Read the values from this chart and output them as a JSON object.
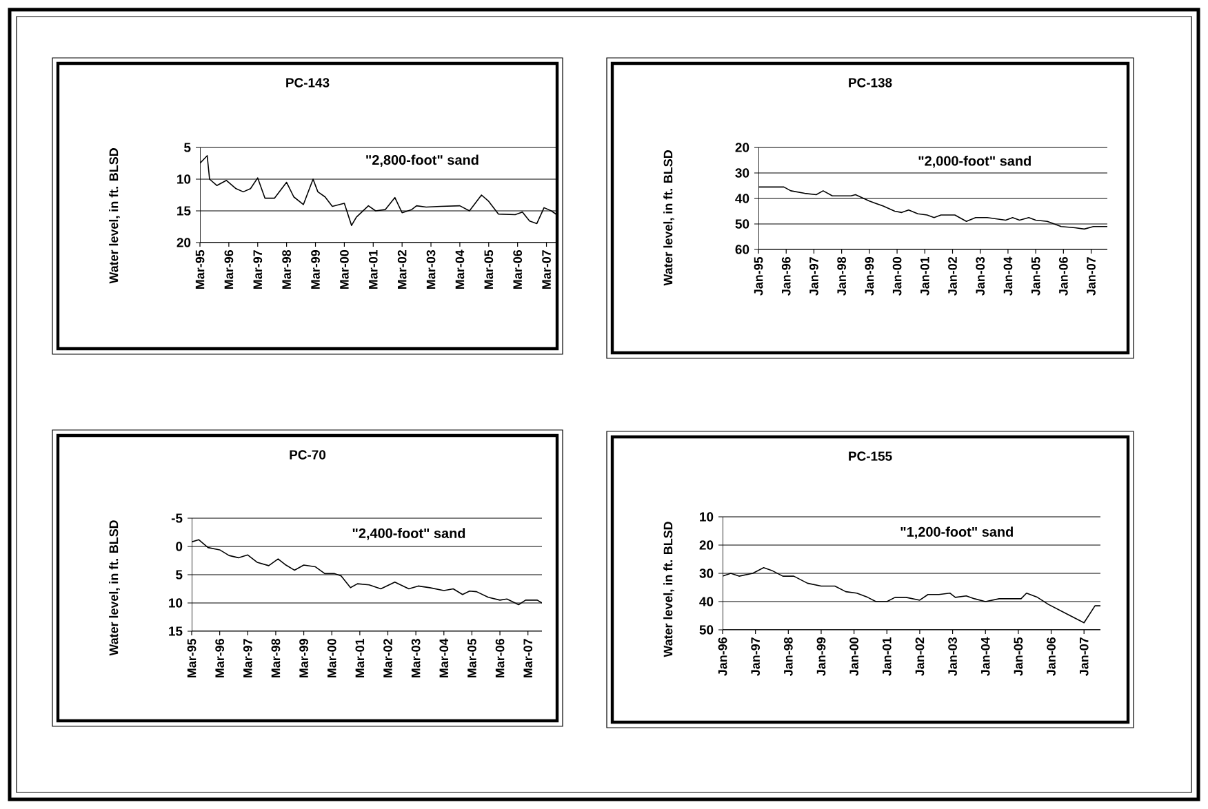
{
  "chart_data": [
    {
      "type": "line",
      "title": "PC-143",
      "ylabel": "Water level, in ft. BLSD",
      "annotations": [
        "\"2,800-foot\" sand"
      ],
      "color": "#000000",
      "grid": "y",
      "xlim": [
        "1995-03",
        "2007-08"
      ],
      "ylim": [
        20,
        5
      ],
      "yticks": [
        5,
        10,
        15,
        20
      ],
      "xticks": [
        {
          "value": "1995-03",
          "label": "Mar-95"
        },
        {
          "value": "1996-03",
          "label": "Mar-96"
        },
        {
          "value": "1997-03",
          "label": "Mar-97"
        },
        {
          "value": "1998-03",
          "label": "Mar-98"
        },
        {
          "value": "1999-03",
          "label": "Mar-99"
        },
        {
          "value": "2000-03",
          "label": "Mar-00"
        },
        {
          "value": "2001-03",
          "label": "Mar-01"
        },
        {
          "value": "2002-03",
          "label": "Mar-02"
        },
        {
          "value": "2003-03",
          "label": "Mar-03"
        },
        {
          "value": "2004-03",
          "label": "Mar-04"
        },
        {
          "value": "2005-03",
          "label": "Mar-05"
        },
        {
          "value": "2006-03",
          "label": "Mar-06"
        },
        {
          "value": "2007-03",
          "label": "Mar-07"
        }
      ],
      "x": [
        "1995-03",
        "1995-06",
        "1995-07",
        "1995-10",
        "1996-02",
        "1996-06",
        "1996-09",
        "1996-12",
        "1997-03",
        "1997-06",
        "1997-10",
        "1998-03",
        "1998-06",
        "1998-10",
        "1999-02",
        "1999-04",
        "1999-07",
        "1999-10",
        "2000-03",
        "2000-06",
        "2000-08",
        "2001-01",
        "2001-04",
        "2001-08",
        "2001-12",
        "2002-03",
        "2002-07",
        "2002-09",
        "2003-01",
        "2003-07",
        "2004-03",
        "2004-07",
        "2004-12",
        "2005-03",
        "2005-07",
        "2006-02",
        "2006-05",
        "2006-08",
        "2006-11",
        "2007-02",
        "2007-05",
        "2007-08"
      ],
      "values": [
        7.5,
        6.3,
        10,
        11,
        10.2,
        11.5,
        12,
        11.5,
        9.8,
        13,
        13,
        10.5,
        12.8,
        14,
        10,
        12,
        12.8,
        14.3,
        13.8,
        17.3,
        16,
        14.2,
        15,
        14.8,
        12.9,
        15.3,
        14.8,
        14.2,
        14.4,
        14.3,
        14.2,
        15,
        12.5,
        13.5,
        15.5,
        15.6,
        15.2,
        16.6,
        17,
        14.5,
        15,
        15.8
      ]
    },
    {
      "type": "line",
      "title": "PC-138",
      "ylabel": "Water level, in ft. BLSD",
      "annotations": [
        "\"2,000-foot\" sand"
      ],
      "color": "#000000",
      "grid": "y",
      "xlim": [
        "1995-01",
        "2007-08"
      ],
      "ylim": [
        60,
        20
      ],
      "yticks": [
        20,
        30,
        40,
        50,
        60
      ],
      "xticks": [
        {
          "value": "1995-01",
          "label": "Jan-95"
        },
        {
          "value": "1996-01",
          "label": "Jan-96"
        },
        {
          "value": "1997-01",
          "label": "Jan-97"
        },
        {
          "value": "1998-01",
          "label": "Jan-98"
        },
        {
          "value": "1999-01",
          "label": "Jan-99"
        },
        {
          "value": "2000-01",
          "label": "Jan-00"
        },
        {
          "value": "2001-01",
          "label": "Jan-01"
        },
        {
          "value": "2002-01",
          "label": "Jan-02"
        },
        {
          "value": "2003-01",
          "label": "Jan-03"
        },
        {
          "value": "2004-01",
          "label": "Jan-04"
        },
        {
          "value": "2005-01",
          "label": "Jan-05"
        },
        {
          "value": "2006-01",
          "label": "Jan-06"
        },
        {
          "value": "2007-01",
          "label": "Jan-07"
        }
      ],
      "x": [
        "1995-01",
        "1995-12",
        "1996-03",
        "1996-09",
        "1997-02",
        "1997-05",
        "1997-09",
        "1998-05",
        "1998-07",
        "1999-01",
        "1999-07",
        "1999-12",
        "2000-03",
        "2000-06",
        "2000-10",
        "2001-02",
        "2001-05",
        "2001-08",
        "2002-02",
        "2002-07",
        "2002-11",
        "2003-04",
        "2003-12",
        "2004-03",
        "2004-06",
        "2004-10",
        "2005-01",
        "2005-06",
        "2005-12",
        "2006-06",
        "2006-10",
        "2007-02",
        "2007-08"
      ],
      "values": [
        35.5,
        35.5,
        37,
        38,
        38.5,
        37,
        39,
        39,
        38.5,
        41,
        43,
        45,
        45.5,
        44.5,
        46,
        46.5,
        47.5,
        46.5,
        46.5,
        49,
        47.5,
        47.5,
        48.5,
        47.5,
        48.5,
        47.5,
        48.5,
        49,
        51,
        51.5,
        52,
        51,
        51
      ]
    },
    {
      "type": "line",
      "title": "PC-70",
      "ylabel": "Water level, in ft. BLSD",
      "annotations": [
        "\"2,400-foot\" sand"
      ],
      "color": "#000000",
      "grid": "y",
      "xlim": [
        "1995-03",
        "2007-09"
      ],
      "ylim": [
        15,
        -5
      ],
      "yticks": [
        -5,
        0,
        5,
        10,
        15
      ],
      "xticks": [
        {
          "value": "1995-03",
          "label": "Mar-95"
        },
        {
          "value": "1996-03",
          "label": "Mar-96"
        },
        {
          "value": "1997-03",
          "label": "Mar-97"
        },
        {
          "value": "1998-03",
          "label": "Mar-98"
        },
        {
          "value": "1999-03",
          "label": "Mar-99"
        },
        {
          "value": "2000-03",
          "label": "Mar-00"
        },
        {
          "value": "2001-03",
          "label": "Mar-01"
        },
        {
          "value": "2002-03",
          "label": "Mar-02"
        },
        {
          "value": "2003-03",
          "label": "Mar-03"
        },
        {
          "value": "2004-03",
          "label": "Mar-04"
        },
        {
          "value": "2005-03",
          "label": "Mar-05"
        },
        {
          "value": "2006-03",
          "label": "Mar-06"
        },
        {
          "value": "2007-03",
          "label": "Mar-07"
        }
      ],
      "x": [
        "1995-03",
        "1995-06",
        "1995-10",
        "1996-03",
        "1996-07",
        "1996-11",
        "1997-03",
        "1997-07",
        "1997-12",
        "1998-04",
        "1998-07",
        "1998-11",
        "1999-03",
        "1999-08",
        "1999-12",
        "2000-04",
        "2000-07",
        "2000-11",
        "2001-02",
        "2001-07",
        "2001-12",
        "2002-06",
        "2002-12",
        "2003-04",
        "2003-09",
        "2004-03",
        "2004-07",
        "2004-11",
        "2005-02",
        "2005-05",
        "2005-10",
        "2006-03",
        "2006-06",
        "2006-11",
        "2007-02",
        "2007-07",
        "2007-09"
      ],
      "values": [
        -0.8,
        -1.2,
        0.2,
        0.6,
        1.6,
        2,
        1.5,
        2.8,
        3.4,
        2.2,
        3.2,
        4.2,
        3.3,
        3.6,
        4.8,
        4.8,
        5.2,
        7.3,
        6.6,
        6.8,
        7.5,
        6.3,
        7.5,
        7,
        7.3,
        7.8,
        7.5,
        8.5,
        7.9,
        8,
        9,
        9.5,
        9.3,
        10.3,
        9.5,
        9.5,
        10
      ]
    },
    {
      "type": "line",
      "title": "PC-155",
      "ylabel": "Water level, in ft. BLSD",
      "annotations": [
        "\"1,200-foot\" sand"
      ],
      "color": "#000000",
      "grid": "y",
      "xlim": [
        "1996-01",
        "2007-07"
      ],
      "ylim": [
        50,
        10
      ],
      "yticks": [
        10,
        20,
        30,
        40,
        50
      ],
      "xticks": [
        {
          "value": "1996-01",
          "label": "Jan-96"
        },
        {
          "value": "1997-01",
          "label": "Jan-97"
        },
        {
          "value": "1998-01",
          "label": "Jan-98"
        },
        {
          "value": "1999-01",
          "label": "Jan-99"
        },
        {
          "value": "2000-01",
          "label": "Jan-00"
        },
        {
          "value": "2001-01",
          "label": "Jan-01"
        },
        {
          "value": "2002-01",
          "label": "Jan-02"
        },
        {
          "value": "2003-01",
          "label": "Jan-03"
        },
        {
          "value": "2004-01",
          "label": "Jan-04"
        },
        {
          "value": "2005-01",
          "label": "Jan-05"
        },
        {
          "value": "2006-01",
          "label": "Jan-06"
        },
        {
          "value": "2007-01",
          "label": "Jan-07"
        }
      ],
      "x": [
        "1996-01",
        "1996-04",
        "1996-07",
        "1996-12",
        "1997-04",
        "1997-07",
        "1997-11",
        "1998-03",
        "1998-08",
        "1999-01",
        "1999-06",
        "1999-10",
        "2000-02",
        "2000-06",
        "2000-09",
        "2001-01",
        "2001-04",
        "2001-08",
        "2002-01",
        "2002-04",
        "2002-08",
        "2002-12",
        "2003-02",
        "2003-06",
        "2003-09",
        "2004-01",
        "2004-06",
        "2005-02",
        "2005-04",
        "2005-08",
        "2005-12",
        "2006-07",
        "2007-01",
        "2007-05",
        "2007-07"
      ],
      "values": [
        31,
        30,
        31,
        30,
        28,
        29,
        31,
        31,
        33.5,
        34.5,
        34.5,
        36.5,
        37,
        38.5,
        40,
        40,
        38.5,
        38.5,
        39.5,
        37.5,
        37.5,
        37,
        38.5,
        38,
        39,
        40,
        39,
        39,
        37,
        38.5,
        41,
        44.5,
        47.5,
        41.5,
        41.5
      ]
    }
  ]
}
